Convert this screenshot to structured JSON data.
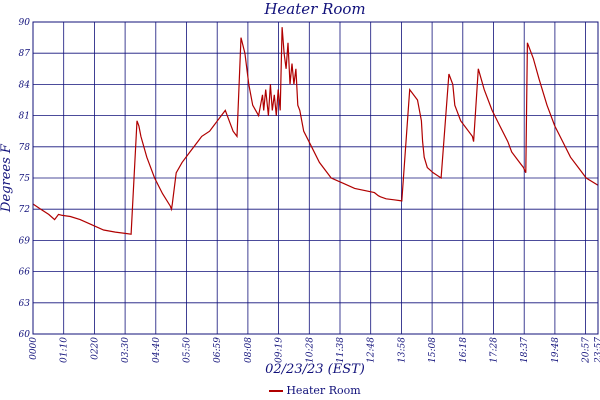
{
  "chart_data": {
    "type": "line",
    "title": "Heater Room",
    "xlabel": "02/23/23 (EST)",
    "ylabel": "Degrees F",
    "ylim": [
      60,
      90
    ],
    "yticks": [
      60,
      63,
      66,
      69,
      72,
      75,
      78,
      81,
      84,
      87,
      90
    ],
    "xlim": [
      0,
      1440
    ],
    "xtick_labels": [
      "0000",
      "01:10",
      "0220",
      "03:30",
      "04:40",
      "05:50",
      "06:59",
      "08:08",
      "09:19",
      "10:28",
      "11:38",
      "12:48",
      "13:58",
      "15:08",
      "16:18",
      "17:28",
      "18:37",
      "19:48",
      "20:57",
      "22:07",
      "23:17",
      "23:57"
    ],
    "grid": true,
    "legend_placement": "bottom-center",
    "line_color": "#b00000",
    "series": [
      {
        "name": "Heater Room",
        "x": [
          0,
          20,
          40,
          55,
          65,
          75,
          95,
          120,
          150,
          180,
          210,
          250,
          265,
          270,
          275,
          290,
          310,
          330,
          350,
          353,
          355,
          365,
          380,
          400,
          420,
          430,
          450,
          460,
          470,
          480,
          490,
          500,
          510,
          520,
          530,
          540,
          550,
          560,
          575,
          585,
          588,
          593,
          600,
          605,
          610,
          615,
          620,
          625,
          630,
          635,
          640,
          645,
          650,
          655,
          660,
          665,
          670,
          675,
          680,
          690,
          710,
          730,
          760,
          790,
          820,
          870,
          880,
          885,
          900,
          920,
          940,
          960,
          980,
          990,
          993,
          997,
          1005,
          1020,
          1040,
          1060,
          1070,
          1075,
          1090,
          1110,
          1120,
          1123,
          1135,
          1150,
          1170,
          1190,
          1210,
          1220,
          1240,
          1250,
          1256,
          1260,
          1275,
          1290,
          1310,
          1330,
          1350,
          1370,
          1390,
          1410,
          1440
        ],
        "y": [
          72.5,
          72.0,
          71.5,
          71.0,
          71.5,
          71.4,
          71.3,
          71.0,
          70.5,
          70.0,
          69.8,
          69.6,
          80.5,
          80.0,
          79.0,
          77.0,
          75.0,
          73.5,
          72.3,
          72.0,
          72.5,
          75.5,
          76.5,
          77.5,
          78.5,
          79.0,
          79.5,
          80.0,
          80.5,
          81.0,
          81.5,
          80.5,
          79.5,
          79.0,
          88.5,
          87.0,
          84.0,
          82.0,
          81.0,
          83.0,
          81.5,
          83.5,
          81.0,
          84.0,
          81.5,
          83.0,
          81.0,
          83.5,
          81.5,
          89.5,
          87.0,
          85.5,
          88.0,
          84.0,
          86.0,
          84.0,
          85.5,
          82.0,
          81.5,
          79.5,
          78.0,
          76.5,
          75.0,
          74.5,
          74.0,
          73.6,
          73.3,
          73.2,
          73.0,
          72.9,
          72.8,
          83.5,
          82.5,
          80.5,
          78.5,
          77.0,
          76.0,
          75.5,
          75.0,
          85.0,
          84.0,
          82.0,
          80.5,
          79.5,
          79.0,
          78.5,
          85.5,
          83.5,
          81.5,
          80.0,
          78.5,
          77.5,
          76.5,
          76.0,
          75.5,
          88.0,
          86.5,
          84.5,
          82.0,
          80.0,
          78.5,
          77.0,
          76.0,
          75.0,
          74.3
        ]
      }
    ]
  }
}
